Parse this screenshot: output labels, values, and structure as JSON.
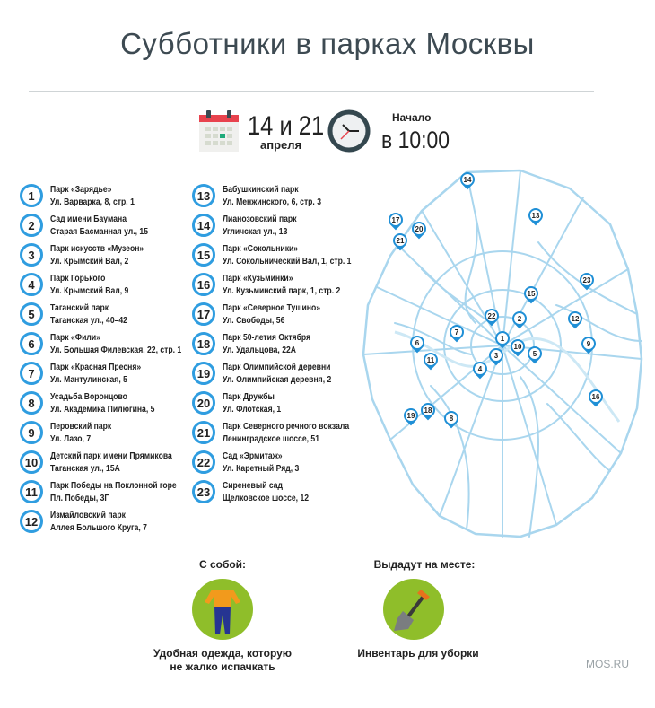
{
  "title": "Субботники в парках Москвы",
  "date": {
    "days": "14 и 21",
    "month": "апреля",
    "icon": "calendar-icon"
  },
  "start": {
    "label": "Начало",
    "time": "в 10:00",
    "icon": "clock-icon"
  },
  "colors": {
    "accent": "#2f9de0",
    "pin": "#1f8fd6",
    "roads": "#a9d6ee",
    "green": "#8fbe2a",
    "title": "#3d4a52"
  },
  "parks": [
    {
      "n": "1",
      "name": "Парк «Зарядье»",
      "addr": "Ул. Варварка, 8, стр. 1"
    },
    {
      "n": "2",
      "name": "Сад имени Баумана",
      "addr": "Старая Басманная ул., 15"
    },
    {
      "n": "3",
      "name": "Парк искусств «Музеон»",
      "addr": "Ул. Крымский Вал, 2"
    },
    {
      "n": "4",
      "name": "Парк Горького",
      "addr": "Ул. Крымский Вал, 9"
    },
    {
      "n": "5",
      "name": "Таганский парк",
      "addr": "Таганская ул., 40–42"
    },
    {
      "n": "6",
      "name": "Парк «Фили»",
      "addr": "Ул. Большая Филевская, 22, стр. 1"
    },
    {
      "n": "7",
      "name": "Парк «Красная Пресня»",
      "addr": "Ул. Мантулинская, 5"
    },
    {
      "n": "8",
      "name": "Усадьба Воронцово",
      "addr": "Ул. Академика Пилюгина, 5"
    },
    {
      "n": "9",
      "name": "Перовский парк",
      "addr": "Ул. Лазо, 7"
    },
    {
      "n": "10",
      "name": "Детский парк имени Прямикова",
      "addr": "Таганская ул., 15А"
    },
    {
      "n": "11",
      "name": "Парк Победы на Поклонной горе",
      "addr": "Пл. Победы, 3Г"
    },
    {
      "n": "12",
      "name": "Измайловский парк",
      "addr": "Аллея Большого Круга, 7"
    },
    {
      "n": "13",
      "name": "Бабушкинский парк",
      "addr": "Ул. Менжинского, 6, стр. 3"
    },
    {
      "n": "14",
      "name": "Лианозовский парк",
      "addr": "Угличская ул., 13"
    },
    {
      "n": "15",
      "name": "Парк «Сокольники»",
      "addr": "Ул. Сокольнический Вал, 1, стр. 1"
    },
    {
      "n": "16",
      "name": "Парк «Кузьминки»",
      "addr": "Ул. Кузьминский парк, 1, стр. 2"
    },
    {
      "n": "17",
      "name": "Парк «Северное Тушино»",
      "addr": "Ул. Свободы, 56"
    },
    {
      "n": "18",
      "name": "Парк 50-летия Октября",
      "addr": "Ул. Удальцова, 22А"
    },
    {
      "n": "19",
      "name": "Парк Олимпийской деревни",
      "addr": "Ул. Олимпийская деревня, 2"
    },
    {
      "n": "20",
      "name": "Парк Дружбы",
      "addr": "Ул. Флотская, 1"
    },
    {
      "n": "21",
      "name": "Парк Северного речного вокзала",
      "addr": "Ленинградское шоссе, 51"
    },
    {
      "n": "22",
      "name": "Сад «Эрмитаж»",
      "addr": "Ул. Каретный Ряд, 3"
    },
    {
      "n": "23",
      "name": "Сиреневый сад",
      "addr": "Щелковское шоссе, 12"
    }
  ],
  "bring": {
    "heading": "С собой:",
    "caption1": "Удобная одежда, которую",
    "caption2": "не жалко испачкать",
    "icon": "clothes-icon"
  },
  "given": {
    "heading": "Выдадут на месте:",
    "caption": "Инвентарь для уборки",
    "icon": "shovel-icon"
  },
  "footer": "MOS.RU"
}
